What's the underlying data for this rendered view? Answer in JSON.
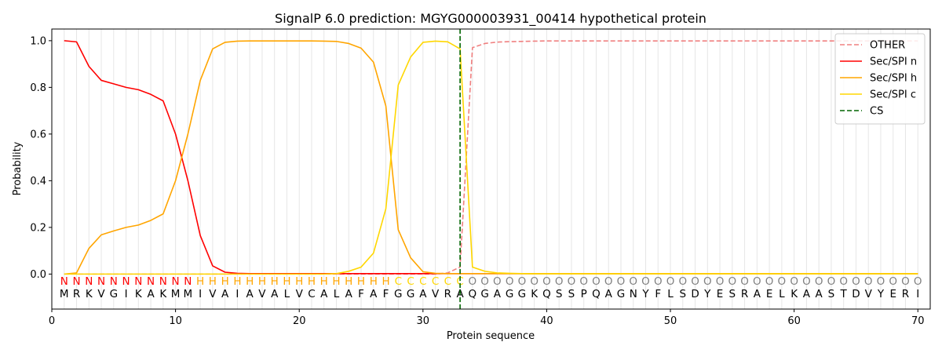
{
  "chart_data": {
    "type": "line",
    "title": "SignalP 6.0 prediction: MGYG000003931_00414 hypothetical protein",
    "xlabel": "Protein sequence",
    "ylabel": "Probability",
    "xlim": [
      0,
      71
    ],
    "ylim": [
      -0.15,
      1.05
    ],
    "x_ticks": [
      0,
      10,
      20,
      30,
      40,
      50,
      60,
      70
    ],
    "x_tick_labels": [
      "0",
      "10",
      "20",
      "30",
      "40",
      "50",
      "60",
      "70"
    ],
    "y_ticks": [
      0.0,
      0.2,
      0.4,
      0.6,
      0.8,
      1.0
    ],
    "y_tick_labels": [
      "0.0",
      "0.2",
      "0.4",
      "0.6",
      "0.8",
      "1.0"
    ],
    "legend_position": "top-right",
    "sequence": [
      "M",
      "R",
      "K",
      "V",
      "G",
      "I",
      "K",
      "A",
      "K",
      "M",
      "M",
      "I",
      "V",
      "A",
      "I",
      "A",
      "V",
      "A",
      "L",
      "V",
      "C",
      "A",
      "L",
      "A",
      "F",
      "A",
      "F",
      "G",
      "G",
      "A",
      "V",
      "R",
      "A",
      "Q",
      "G",
      "A",
      "G",
      "G",
      "K",
      "Q",
      "S",
      "S",
      "P",
      "Q",
      "A",
      "G",
      "N",
      "Y",
      "F",
      "L",
      "S",
      "D",
      "Y",
      "E",
      "S",
      "R",
      "A",
      "E",
      "L",
      "K",
      "A",
      "A",
      "S",
      "T",
      "D",
      "V",
      "Y",
      "E",
      "R",
      "I"
    ],
    "labels": [
      "N",
      "N",
      "N",
      "N",
      "N",
      "N",
      "N",
      "N",
      "N",
      "N",
      "N",
      "H",
      "H",
      "H",
      "H",
      "H",
      "H",
      "H",
      "H",
      "H",
      "H",
      "H",
      "H",
      "H",
      "H",
      "H",
      "H",
      "C",
      "C",
      "C",
      "C",
      "C",
      "C",
      "O",
      "O",
      "O",
      "O",
      "O",
      "O",
      "O",
      "O",
      "O",
      "O",
      "O",
      "O",
      "O",
      "O",
      "O",
      "O",
      "O",
      "O",
      "O",
      "O",
      "O",
      "O",
      "O",
      "O",
      "O",
      "O",
      "O",
      "O",
      "O",
      "O",
      "O",
      "O",
      "O",
      "O",
      "O",
      "O",
      "O"
    ],
    "label_colors": {
      "N": "#ff0000",
      "H": "#ffa500",
      "C": "#ffd700",
      "O": "#808080"
    },
    "cleavage_site": 33,
    "series": [
      {
        "name": "OTHER",
        "color": "#f08080",
        "dash": "dashed",
        "values": [
          0.0,
          0.0,
          0.0,
          0.0,
          0.0,
          0.0,
          0.0,
          0.0,
          0.0,
          0.0,
          0.0,
          0.0,
          0.0,
          0.0,
          0.0,
          0.0,
          0.0,
          0.0,
          0.0,
          0.0,
          0.0,
          0.0,
          0.0,
          0.0,
          0.0,
          0.0,
          0.0,
          0.0,
          0.0,
          0.0,
          0.0,
          0.005,
          0.03,
          0.97,
          0.988,
          0.994,
          0.996,
          0.997,
          0.998,
          0.999,
          0.999,
          0.999,
          0.999,
          0.999,
          0.999,
          0.999,
          0.999,
          0.999,
          0.999,
          0.999,
          0.999,
          0.999,
          0.999,
          0.999,
          0.999,
          0.999,
          0.999,
          0.999,
          0.999,
          0.999,
          0.999,
          0.999,
          0.999,
          0.999,
          0.999,
          0.999,
          0.999,
          0.999,
          0.999,
          0.999
        ]
      },
      {
        "name": "Sec/SPI n",
        "color": "#ff0000",
        "dash": "solid",
        "values": [
          1.0,
          0.995,
          0.89,
          0.83,
          0.815,
          0.8,
          0.79,
          0.77,
          0.742,
          0.6,
          0.4,
          0.165,
          0.035,
          0.008,
          0.003,
          0.002,
          0.002,
          0.002,
          0.002,
          0.002,
          0.002,
          0.002,
          0.002,
          0.002,
          0.002,
          0.002,
          0.002,
          0.002,
          0.002,
          0.002,
          0.002,
          0.002,
          0.002,
          0.002,
          0.002,
          0.002,
          0.002,
          0.002,
          0.002,
          0.002,
          0.002,
          0.002,
          0.002,
          0.002,
          0.002,
          0.002,
          0.002,
          0.002,
          0.002,
          0.002,
          0.002,
          0.002,
          0.002,
          0.002,
          0.002,
          0.002,
          0.002,
          0.002,
          0.002,
          0.002,
          0.002,
          0.002,
          0.002,
          0.002,
          0.002,
          0.002,
          0.002,
          0.002,
          0.002,
          0.002
        ]
      },
      {
        "name": "Sec/SPI h",
        "color": "#ffa500",
        "dash": "solid",
        "values": [
          0.0,
          0.005,
          0.11,
          0.168,
          0.185,
          0.2,
          0.21,
          0.23,
          0.258,
          0.4,
          0.6,
          0.83,
          0.965,
          0.993,
          0.998,
          0.999,
          0.999,
          0.999,
          0.999,
          0.999,
          0.999,
          0.998,
          0.997,
          0.988,
          0.968,
          0.908,
          0.72,
          0.19,
          0.07,
          0.01,
          0.003,
          0.002,
          0.002,
          0.002,
          0.002,
          0.002,
          0.002,
          0.002,
          0.002,
          0.002,
          0.002,
          0.002,
          0.002,
          0.002,
          0.002,
          0.002,
          0.002,
          0.002,
          0.002,
          0.002,
          0.002,
          0.002,
          0.002,
          0.002,
          0.002,
          0.002,
          0.002,
          0.002,
          0.002,
          0.002,
          0.002,
          0.002,
          0.002,
          0.002,
          0.002,
          0.002,
          0.002,
          0.002,
          0.002,
          0.002
        ]
      },
      {
        "name": "Sec/SPI c",
        "color": "#ffd700",
        "dash": "solid",
        "values": [
          0.0,
          0.0,
          0.0,
          0.0,
          0.0,
          0.0,
          0.0,
          0.0,
          0.0,
          0.0,
          0.0,
          0.0,
          0.0,
          0.0,
          0.0,
          0.0,
          0.0,
          0.0,
          0.0,
          0.0,
          0.0,
          0.0,
          0.002,
          0.012,
          0.03,
          0.09,
          0.28,
          0.81,
          0.93,
          0.993,
          0.998,
          0.995,
          0.965,
          0.03,
          0.012,
          0.005,
          0.003,
          0.002,
          0.001,
          0.001,
          0.001,
          0.001,
          0.001,
          0.001,
          0.001,
          0.001,
          0.001,
          0.001,
          0.001,
          0.001,
          0.001,
          0.001,
          0.001,
          0.001,
          0.001,
          0.001,
          0.001,
          0.001,
          0.001,
          0.001,
          0.001,
          0.001,
          0.001,
          0.001,
          0.001,
          0.001,
          0.001,
          0.001,
          0.001,
          0.001
        ]
      }
    ],
    "cs_legend": {
      "name": "CS",
      "color": "#006400",
      "dash": "dashed"
    }
  }
}
